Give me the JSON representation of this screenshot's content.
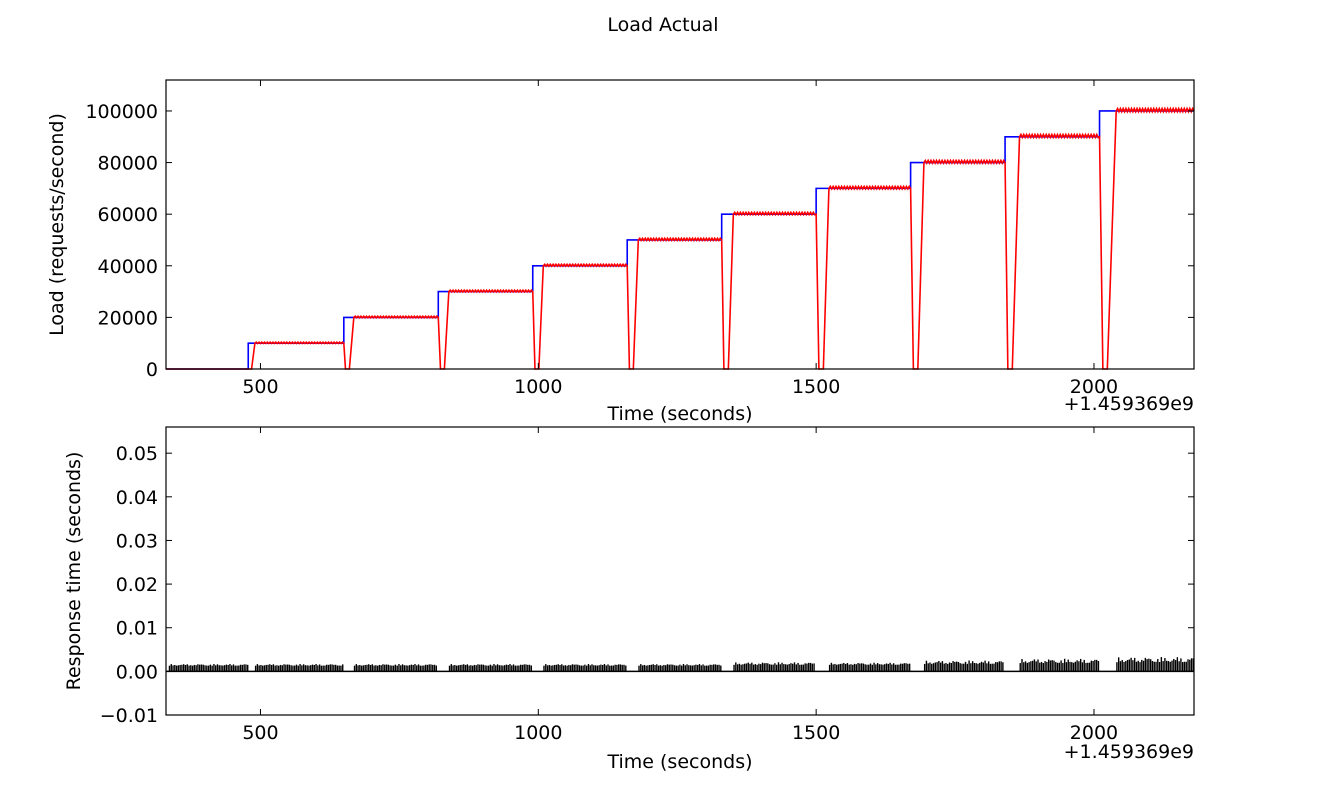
{
  "figure": {
    "title": "Load Actual"
  },
  "chart_data": [
    {
      "type": "line",
      "panel": "top",
      "title": "",
      "xlabel": "Time (seconds)",
      "ylabel": "Load (requests/second)",
      "x_offset_label": "+1.459369e9",
      "xlim": [
        330,
        2180
      ],
      "ylim": [
        0,
        112000
      ],
      "xticks": [
        500,
        1000,
        1500,
        2000
      ],
      "yticks": [
        0,
        20000,
        40000,
        60000,
        80000,
        100000
      ],
      "grid": false,
      "series": [
        {
          "color": "#0000ff",
          "kind": "target-step",
          "x": [
            330,
            478,
            478,
            650,
            650,
            820,
            820,
            990,
            990,
            1160,
            1160,
            1330,
            1330,
            1500,
            1500,
            1670,
            1670,
            1840,
            1840,
            2010,
            2010,
            2180
          ],
          "y": [
            0,
            0,
            10000,
            10000,
            20000,
            20000,
            30000,
            30000,
            40000,
            40000,
            50000,
            50000,
            60000,
            60000,
            70000,
            70000,
            80000,
            80000,
            90000,
            90000,
            100000,
            100000
          ]
        },
        {
          "color": "#ff0000",
          "kind": "actual",
          "x": [
            330,
            478,
            484,
            490,
            650,
            653,
            660,
            668,
            820,
            824,
            831,
            839,
            990,
            994,
            1001,
            1009,
            1160,
            1164,
            1171,
            1180,
            1330,
            1334,
            1342,
            1351,
            1500,
            1505,
            1513,
            1523,
            1670,
            1675,
            1683,
            1694,
            1840,
            1845,
            1853,
            1866,
            2010,
            2016,
            2024,
            2040,
            2180
          ],
          "y": [
            0,
            0,
            0,
            10000,
            10000,
            0,
            0,
            20000,
            20000,
            0,
            0,
            30000,
            30000,
            0,
            0,
            40000,
            40000,
            0,
            0,
            50000,
            50000,
            0,
            0,
            60000,
            60000,
            0,
            0,
            70000,
            70000,
            0,
            0,
            80000,
            80000,
            0,
            0,
            90000,
            90000,
            0,
            0,
            100000,
            100000
          ]
        }
      ]
    },
    {
      "type": "bar",
      "panel": "bottom",
      "title": "",
      "xlabel": "Time (seconds)",
      "ylabel": "Response time (seconds)",
      "x_offset_label": "+1.459369e9",
      "xlim": [
        330,
        2180
      ],
      "ylim": [
        -0.01,
        0.056
      ],
      "xticks": [
        500,
        1000,
        1500,
        2000
      ],
      "yticks": [
        -0.01,
        0.0,
        0.01,
        0.02,
        0.03,
        0.04,
        0.05
      ],
      "ytick_labels": [
        "−0.01",
        "0.00",
        "0.01",
        "0.02",
        "0.03",
        "0.04",
        "0.05"
      ],
      "grid": false,
      "color": "#000000",
      "bar_width": 2.5,
      "segments": [
        {
          "x0": 335,
          "x1": 478,
          "base": 0.0013,
          "amp": 0.0004
        },
        {
          "x0": 490,
          "x1": 648,
          "base": 0.0013,
          "amp": 0.0004
        },
        {
          "x0": 668,
          "x1": 818,
          "base": 0.0013,
          "amp": 0.0004
        },
        {
          "x0": 839,
          "x1": 988,
          "base": 0.0013,
          "amp": 0.0004
        },
        {
          "x0": 1009,
          "x1": 1158,
          "base": 0.0013,
          "amp": 0.0004
        },
        {
          "x0": 1180,
          "x1": 1328,
          "base": 0.0013,
          "amp": 0.0004
        },
        {
          "x0": 1351,
          "x1": 1498,
          "base": 0.0015,
          "amp": 0.0006
        },
        {
          "x0": 1523,
          "x1": 1668,
          "base": 0.0015,
          "amp": 0.0005
        },
        {
          "x0": 1694,
          "x1": 1838,
          "base": 0.0017,
          "amp": 0.0008
        },
        {
          "x0": 1866,
          "x1": 2008,
          "base": 0.0019,
          "amp": 0.001
        },
        {
          "x0": 2040,
          "x1": 2178,
          "base": 0.0021,
          "amp": 0.0012
        }
      ]
    }
  ]
}
